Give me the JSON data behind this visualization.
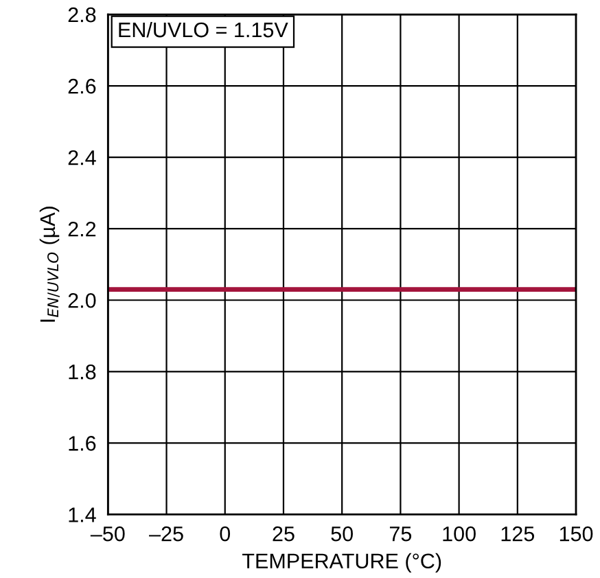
{
  "chart_data": {
    "type": "line",
    "xlabel": "TEMPERATURE (°C)",
    "ylabel": "I$_{EN/UVLO}$ (µA)",
    "annotations": [
      "EN/UVLO = 1.15V"
    ],
    "x": [
      -50,
      150
    ],
    "series": [
      {
        "color": "#a3143c",
        "values": [
          2.03,
          2.03
        ]
      }
    ],
    "xlim": [
      -50,
      150
    ],
    "xticks": [
      {
        "value": -50,
        "label": "–50"
      },
      {
        "value": -25,
        "label": "–25"
      },
      0,
      25,
      50,
      75,
      100,
      125,
      150
    ],
    "ylim": [
      1.4,
      2.8
    ],
    "yticks": [
      1.4,
      1.6,
      1.8,
      {
        "value": 2,
        "label": "2.0"
      },
      2.2,
      2.4,
      2.6,
      2.8
    ],
    "grid": true,
    "marker": "none",
    "line_style": "solid"
  }
}
